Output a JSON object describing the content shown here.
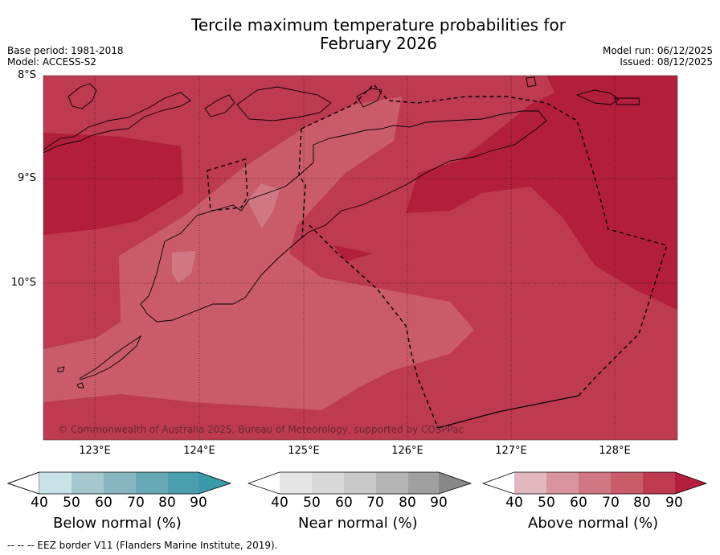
{
  "title_line1": "Tercile maximum temperature probabilities for",
  "title_line2": "February 2026",
  "base_period": "Base period: 1981-2018",
  "model": "Model: ACCESS-S2",
  "model_run": "Model run: 06/12/2025",
  "issued": "Issued: 08/12/2025",
  "lat_labels": [
    "8°S",
    "9°S",
    "10°S"
  ],
  "lon_labels": [
    "123°E",
    "124°E",
    "125°E",
    "126°E",
    "127°E",
    "128°E"
  ],
  "copyright": "© Commonwealth of Australia 2025, Bureau of Meteorology, supported by COSPPac",
  "colorbars": [
    {
      "label": "Below normal (%)",
      "ticks": [
        "40",
        "50",
        "60",
        "70",
        "80",
        "90"
      ],
      "colors": [
        "#c9e2e8",
        "#a5c8ce",
        "#87b6c0",
        "#68a7b4",
        "#4b9eae",
        "#3a9aaa"
      ]
    },
    {
      "label": "Near normal (%)",
      "ticks": [
        "40",
        "50",
        "60",
        "70",
        "80",
        "90"
      ],
      "colors": [
        "#e6e6e6",
        "#d8d8d8",
        "#c9c9c9",
        "#b4b4b4",
        "#a0a0a0",
        "#888888"
      ]
    },
    {
      "label": "Above normal (%)",
      "ticks": [
        "40",
        "50",
        "60",
        "70",
        "80",
        "90"
      ],
      "colors": [
        "#e2b8bf",
        "#d9959f",
        "#cf7883",
        "#c95b6a",
        "#bd3a51",
        "#b21e3b"
      ]
    }
  ],
  "footer": "--  --  -- EEZ border V11 (Flanders Marine Institute, 2019)."
}
